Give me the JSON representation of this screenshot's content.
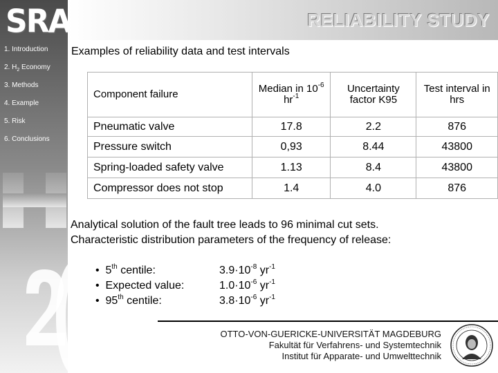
{
  "logo": {
    "text": "SRA"
  },
  "header": {
    "title": "RELIABILITY STUDY"
  },
  "nav": {
    "items": [
      {
        "label": "1. Introduction"
      },
      {
        "label_pre": "2. H",
        "label_sub": "2",
        "label_post": " Economy"
      },
      {
        "label": "3. Methods"
      },
      {
        "label": "4. Example"
      },
      {
        "label": "5. Risk"
      },
      {
        "label": "6. Conclusions"
      }
    ]
  },
  "subtitle": "Examples of reliability data and test intervals",
  "table": {
    "headers": {
      "component": "Component failure",
      "median_pre": "Median in 10",
      "median_exp": "-6",
      "median_mid": " hr",
      "median_unit_exp": "-1",
      "uncertainty": "Uncertainty factor K95",
      "interval": "Test interval in hrs"
    },
    "rows": [
      {
        "component": "Pneumatic valve",
        "median": "17.8",
        "uncertainty": "2.2",
        "interval": "876"
      },
      {
        "component": "Pressure switch",
        "median": "0,93",
        "uncertainty": "8.44",
        "interval": "43800"
      },
      {
        "component": "Spring-loaded safety valve",
        "median": "1.13",
        "uncertainty": "8.4",
        "interval": "43800"
      },
      {
        "component": "Compressor does not stop",
        "median": "1.4",
        "uncertainty": "4.0",
        "interval": "876"
      }
    ]
  },
  "analysis": {
    "line1": "Analytical solution of the fault tree leads to 96 minimal cut sets.",
    "line2": "Characteristic distribution parameters of the frequency of release:"
  },
  "stats": [
    {
      "label_pre": "5",
      "label_sup": "th",
      "label_post": " centile:",
      "mant": "3.9·10",
      "exp": "-8",
      "unit": " yr",
      "unit_exp": "-1"
    },
    {
      "label_pre": "Expected value:",
      "label_sup": "",
      "label_post": "",
      "mant": "1.0·10",
      "exp": "-6",
      "unit": " yr",
      "unit_exp": "-1"
    },
    {
      "label_pre": "95",
      "label_sup": "th",
      "label_post": " centile:",
      "mant": "3.8·10",
      "exp": "-6",
      "unit": " yr",
      "unit_exp": "-1"
    }
  ],
  "footer": {
    "line1": "OTTO-VON-GUERICKE-UNIVERSITÄT MAGDEBURG",
    "line2": "Fakultät für Verfahrens- und Systemtechnik",
    "line3": "Institut für Apparate- und Umwelttechnik"
  },
  "colors": {
    "sidebar_dark": "#4a4a4a",
    "title_text": "#d6d6d6"
  }
}
